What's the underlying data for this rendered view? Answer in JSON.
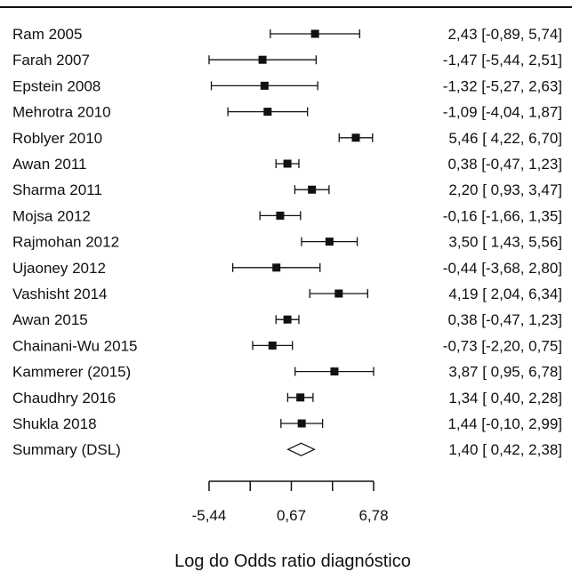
{
  "chart_data": {
    "type": "forest",
    "xlabel": "Log do Odds ratio diagnóstico",
    "xlim": [
      -5.44,
      6.78
    ],
    "xticks": [
      -5.44,
      -2.385,
      0.67,
      3.725,
      6.78
    ],
    "xtick_labels": [
      "-5,44",
      "0,67",
      "6,78"
    ],
    "xtick_label_values": [
      -5.44,
      0.67,
      6.78
    ],
    "studies": [
      {
        "name": "Ram 2005",
        "est": 2.43,
        "lo": -0.89,
        "hi": 5.74,
        "label": "2,43 [-0,89,  5,74]"
      },
      {
        "name": "Farah 2007",
        "est": -1.47,
        "lo": -5.44,
        "hi": 2.51,
        "label": "-1,47 [-5,44,  2,51]"
      },
      {
        "name": "Epstein 2008",
        "est": -1.32,
        "lo": -5.27,
        "hi": 2.63,
        "label": "-1,32 [-5,27,  2,63]"
      },
      {
        "name": "Mehrotra 2010",
        "est": -1.09,
        "lo": -4.04,
        "hi": 1.87,
        "label": "-1,09 [-4,04,  1,87]"
      },
      {
        "name": "Roblyer 2010",
        "est": 5.46,
        "lo": 4.22,
        "hi": 6.7,
        "label": "5,46 [ 4,22,  6,70]"
      },
      {
        "name": "Awan 2011",
        "est": 0.38,
        "lo": -0.47,
        "hi": 1.23,
        "label": "0,38 [-0,47,  1,23]"
      },
      {
        "name": "Sharma 2011",
        "est": 2.2,
        "lo": 0.93,
        "hi": 3.47,
        "label": "2,20 [ 0,93,  3,47]"
      },
      {
        "name": "Mojsa 2012",
        "est": -0.16,
        "lo": -1.66,
        "hi": 1.35,
        "label": "-0,16 [-1,66,  1,35]"
      },
      {
        "name": "Rajmohan 2012",
        "est": 3.5,
        "lo": 1.43,
        "hi": 5.56,
        "label": "3,50 [ 1,43,  5,56]"
      },
      {
        "name": "Ujaoney 2012",
        "est": -0.44,
        "lo": -3.68,
        "hi": 2.8,
        "label": "-0,44 [-3,68,  2,80]"
      },
      {
        "name": "Vashisht 2014",
        "est": 4.19,
        "lo": 2.04,
        "hi": 6.34,
        "label": "4,19 [ 2,04,  6,34]"
      },
      {
        "name": "Awan 2015",
        "est": 0.38,
        "lo": -0.47,
        "hi": 1.23,
        "label": "0,38 [-0,47,  1,23]"
      },
      {
        "name": "Chainani-Wu 2015",
        "est": -0.73,
        "lo": -2.2,
        "hi": 0.75,
        "label": "-0,73 [-2,20,  0,75]"
      },
      {
        "name": "Kammerer (2015)",
        "est": 3.87,
        "lo": 0.95,
        "hi": 6.78,
        "label": "3,87 [ 0,95,  6,78]"
      },
      {
        "name": "Chaudhry 2016",
        "est": 1.34,
        "lo": 0.4,
        "hi": 2.28,
        "label": "1,34 [ 0,40,  2,28]"
      },
      {
        "name": "Shukla 2018",
        "est": 1.44,
        "lo": -0.1,
        "hi": 2.99,
        "label": "1,44 [-0,10,  2,99]"
      }
    ],
    "summary": {
      "name": "Summary (DSL)",
      "est": 1.4,
      "lo": 0.42,
      "hi": 2.38,
      "label": "1,40 [ 0,42,  2,38]"
    }
  }
}
